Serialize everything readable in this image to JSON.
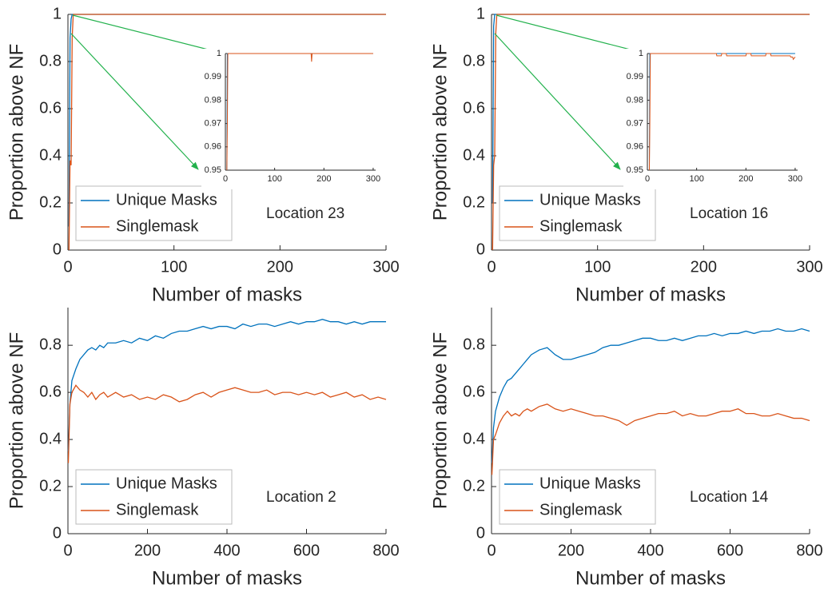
{
  "chart_data": [
    {
      "type": "line",
      "xlabel": "Number of masks",
      "ylabel": "Proportion above NF",
      "annotation": "Location 23",
      "xlim": [
        0,
        300
      ],
      "ylim": [
        0,
        1
      ],
      "xticks": [
        0,
        100,
        200,
        300
      ],
      "yticks": [
        0,
        0.2,
        0.4,
        0.6,
        0.8,
        1
      ],
      "legend": "lower left",
      "x": [
        1,
        2,
        3,
        4,
        5,
        6,
        300
      ],
      "series": [
        {
          "name": "Unique Masks",
          "color": "#0072bd",
          "values": [
            0.1,
            0.9,
            0.98,
            1,
            1,
            1,
            1
          ]
        },
        {
          "name": "Singlemask",
          "color": "#d95319",
          "values": [
            0,
            0.38,
            0.36,
            0.9,
            1,
            1,
            1
          ]
        }
      ],
      "inset": {
        "type": "line",
        "xlim": [
          0,
          305
        ],
        "ylim": [
          0.95,
          1
        ],
        "xticks": [
          0,
          100,
          200,
          300
        ],
        "yticks": [
          0.95,
          0.96,
          0.97,
          0.98,
          0.99,
          1
        ],
        "x": [
          3,
          4,
          5,
          174,
          175,
          176,
          300
        ],
        "series": [
          {
            "color": "#0072bd",
            "values": [
              0.95,
              1,
              1,
              1,
              1,
              1,
              1
            ]
          },
          {
            "color": "#d95319",
            "values": [
              0.95,
              0.97,
              1,
              1,
              0.9965,
              1,
              1
            ]
          }
        ]
      }
    },
    {
      "type": "line",
      "xlabel": "Number of masks",
      "ylabel": "Proportion above NF",
      "annotation": "Location 16",
      "xlim": [
        0,
        300
      ],
      "ylim": [
        0,
        1
      ],
      "xticks": [
        0,
        100,
        200,
        300
      ],
      "yticks": [
        0,
        0.2,
        0.4,
        0.6,
        0.8,
        1
      ],
      "legend": "lower left",
      "x": [
        1,
        2,
        3,
        4,
        5,
        6,
        300
      ],
      "series": [
        {
          "name": "Unique Masks",
          "color": "#0072bd",
          "values": [
            0.2,
            0.95,
            1,
            1,
            1,
            1,
            1
          ]
        },
        {
          "name": "Singlemask",
          "color": "#d95319",
          "values": [
            0,
            0.36,
            0.4,
            0.92,
            1,
            1,
            1
          ]
        }
      ],
      "inset": {
        "type": "line",
        "xlim": [
          0,
          305
        ],
        "ylim": [
          0.95,
          1
        ],
        "xticks": [
          0,
          100,
          200,
          300
        ],
        "yticks": [
          0.95,
          0.96,
          0.97,
          0.98,
          0.99,
          1
        ],
        "x": [
          4,
          5,
          6,
          140,
          141,
          150,
          151,
          160,
          161,
          200,
          201,
          210,
          211,
          240,
          241,
          250,
          251,
          290,
          291,
          295,
          296,
          300
        ],
        "series": [
          {
            "color": "#0072bd",
            "values": [
              0.95,
              1,
              1,
              1,
              1,
              1,
              1,
              1,
              1,
              1,
              1,
              1,
              1,
              1,
              1,
              1,
              1,
              1,
              1,
              1,
              1,
              1
            ]
          },
          {
            "color": "#d95319",
            "values": [
              0.95,
              0.97,
              1,
              1,
              0.999,
              0.999,
              1,
              1,
              0.999,
              0.999,
              1,
              1,
              0.999,
              0.999,
              1,
              1,
              0.999,
              0.999,
              0.9985,
              0.9985,
              0.9975,
              0.9985
            ]
          }
        ]
      }
    },
    {
      "type": "line",
      "xlabel": "Number of masks",
      "ylabel": "Proportion above NF",
      "annotation": "Location 2",
      "xlim": [
        0,
        800
      ],
      "ylim": [
        0,
        0.96
      ],
      "xticks": [
        0,
        200,
        400,
        600,
        800
      ],
      "yticks": [
        0,
        0.2,
        0.4,
        0.6,
        0.8
      ],
      "legend": "lower left",
      "x": [
        1,
        5,
        10,
        20,
        30,
        40,
        50,
        60,
        70,
        80,
        90,
        100,
        120,
        140,
        160,
        180,
        200,
        220,
        240,
        260,
        280,
        300,
        320,
        340,
        360,
        380,
        400,
        420,
        440,
        460,
        480,
        500,
        520,
        540,
        560,
        580,
        600,
        620,
        640,
        660,
        680,
        700,
        720,
        740,
        760,
        780,
        800
      ],
      "series": [
        {
          "name": "Unique Masks",
          "color": "#0072bd",
          "values": [
            0.35,
            0.55,
            0.65,
            0.7,
            0.74,
            0.76,
            0.78,
            0.79,
            0.78,
            0.8,
            0.79,
            0.81,
            0.81,
            0.82,
            0.81,
            0.83,
            0.82,
            0.84,
            0.83,
            0.85,
            0.86,
            0.86,
            0.87,
            0.88,
            0.87,
            0.88,
            0.88,
            0.87,
            0.89,
            0.88,
            0.89,
            0.89,
            0.88,
            0.89,
            0.9,
            0.89,
            0.9,
            0.9,
            0.91,
            0.9,
            0.9,
            0.89,
            0.9,
            0.89,
            0.9,
            0.9,
            0.9
          ]
        },
        {
          "name": "Singlemask",
          "color": "#d95319",
          "values": [
            0.3,
            0.55,
            0.6,
            0.63,
            0.61,
            0.6,
            0.58,
            0.6,
            0.57,
            0.59,
            0.6,
            0.58,
            0.6,
            0.58,
            0.59,
            0.57,
            0.58,
            0.57,
            0.59,
            0.58,
            0.56,
            0.57,
            0.59,
            0.6,
            0.58,
            0.6,
            0.61,
            0.62,
            0.61,
            0.6,
            0.6,
            0.61,
            0.59,
            0.6,
            0.6,
            0.59,
            0.6,
            0.59,
            0.6,
            0.58,
            0.59,
            0.6,
            0.58,
            0.59,
            0.57,
            0.58,
            0.57
          ]
        }
      ]
    },
    {
      "type": "line",
      "xlabel": "Number of masks",
      "ylabel": "Proportion above NF",
      "annotation": "Location 14",
      "xlim": [
        0,
        800
      ],
      "ylim": [
        0,
        0.96
      ],
      "xticks": [
        0,
        200,
        400,
        600,
        800
      ],
      "yticks": [
        0,
        0.2,
        0.4,
        0.6,
        0.8
      ],
      "legend": "lower left",
      "x": [
        1,
        5,
        10,
        20,
        30,
        40,
        50,
        60,
        70,
        80,
        90,
        100,
        120,
        140,
        160,
        180,
        200,
        220,
        240,
        260,
        280,
        300,
        320,
        340,
        360,
        380,
        400,
        420,
        440,
        460,
        480,
        500,
        520,
        540,
        560,
        580,
        600,
        620,
        640,
        660,
        680,
        700,
        720,
        740,
        760,
        780,
        800
      ],
      "series": [
        {
          "name": "Unique Masks",
          "color": "#0072bd",
          "values": [
            0.3,
            0.45,
            0.52,
            0.58,
            0.62,
            0.65,
            0.66,
            0.68,
            0.7,
            0.72,
            0.74,
            0.76,
            0.78,
            0.79,
            0.76,
            0.74,
            0.74,
            0.75,
            0.76,
            0.77,
            0.79,
            0.8,
            0.8,
            0.81,
            0.82,
            0.83,
            0.83,
            0.82,
            0.82,
            0.83,
            0.82,
            0.83,
            0.84,
            0.84,
            0.85,
            0.84,
            0.85,
            0.85,
            0.86,
            0.85,
            0.86,
            0.86,
            0.87,
            0.86,
            0.86,
            0.87,
            0.86
          ]
        },
        {
          "name": "Singlemask",
          "color": "#d95319",
          "values": [
            0.25,
            0.4,
            0.42,
            0.47,
            0.5,
            0.52,
            0.5,
            0.51,
            0.5,
            0.52,
            0.53,
            0.52,
            0.54,
            0.55,
            0.53,
            0.52,
            0.53,
            0.52,
            0.51,
            0.5,
            0.5,
            0.49,
            0.48,
            0.46,
            0.48,
            0.49,
            0.5,
            0.51,
            0.51,
            0.52,
            0.5,
            0.51,
            0.5,
            0.5,
            0.51,
            0.52,
            0.52,
            0.53,
            0.51,
            0.51,
            0.5,
            0.5,
            0.51,
            0.5,
            0.49,
            0.49,
            0.48
          ]
        }
      ]
    }
  ]
}
